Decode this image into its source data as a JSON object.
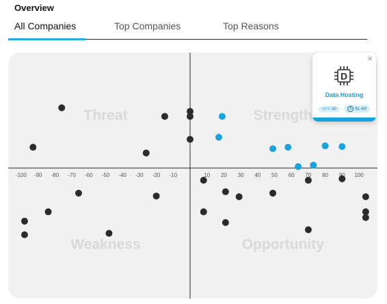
{
  "header": {
    "title": "Overview"
  },
  "tabs": [
    {
      "label": "All Companies",
      "active": true
    },
    {
      "label": "Top Companies",
      "active": false
    },
    {
      "label": "Top Reasons",
      "active": false
    }
  ],
  "colors": {
    "accent": "#1aa3dc",
    "point": "#2b2b2b",
    "quadrant_label": "#d9d9d9"
  },
  "chart_data": {
    "type": "scatter",
    "quadrants": [
      "Threat",
      "Strength",
      "Weakness",
      "Opportunity"
    ],
    "xlim": [
      -100,
      100
    ],
    "ylim": [
      -100,
      100
    ],
    "xticks": [
      -100,
      -90,
      -80,
      -70,
      -60,
      -50,
      -40,
      -30,
      -20,
      -10,
      10,
      20,
      30,
      40,
      50,
      60,
      70,
      80,
      90,
      100
    ],
    "points": [
      {
        "x": -76,
        "y": 84,
        "h": false
      },
      {
        "x": -15,
        "y": 72,
        "h": false
      },
      {
        "x": 0,
        "y": 79,
        "h": false
      },
      {
        "x": 0,
        "y": 72,
        "h": false
      },
      {
        "x": 0,
        "y": 40,
        "h": false
      },
      {
        "x": -93,
        "y": 29,
        "h": false
      },
      {
        "x": -26,
        "y": 21,
        "h": false
      },
      {
        "x": 19,
        "y": 72,
        "h": true
      },
      {
        "x": 17,
        "y": 43,
        "h": true
      },
      {
        "x": 49,
        "y": 27,
        "h": true
      },
      {
        "x": 58,
        "y": 29,
        "h": true
      },
      {
        "x": 80,
        "y": 31,
        "h": true
      },
      {
        "x": 90,
        "y": 30,
        "h": true
      },
      {
        "x": 64,
        "y": 2,
        "h": true
      },
      {
        "x": 73,
        "y": 4,
        "h": true
      },
      {
        "x": 8,
        "y": -17,
        "h": false
      },
      {
        "x": 70,
        "y": -17,
        "h": false
      },
      {
        "x": 90,
        "y": -15,
        "h": false
      },
      {
        "x": -66,
        "y": -35,
        "h": false
      },
      {
        "x": -20,
        "y": -39,
        "h": false
      },
      {
        "x": 21,
        "y": -33,
        "h": false
      },
      {
        "x": 29,
        "y": -40,
        "h": false
      },
      {
        "x": 49,
        "y": -35,
        "h": false
      },
      {
        "x": 104,
        "y": -40,
        "h": false
      },
      {
        "x": -84,
        "y": -61,
        "h": false
      },
      {
        "x": 8,
        "y": -61,
        "h": false
      },
      {
        "x": 104,
        "y": -61,
        "h": false
      },
      {
        "x": 104,
        "y": -69,
        "h": false
      },
      {
        "x": -98,
        "y": -74,
        "h": false
      },
      {
        "x": 21,
        "y": -76,
        "h": false
      },
      {
        "x": -98,
        "y": -93,
        "h": false
      },
      {
        "x": -48,
        "y": -91,
        "h": false
      },
      {
        "x": 70,
        "y": -86,
        "h": false
      }
    ]
  },
  "tooltip": {
    "icon": "chip-icon",
    "icon_letter": "D",
    "title": "Data Hosting",
    "nps_label": "NPS",
    "nps_value": "30",
    "dollar_symbol": "$",
    "amount": "$1.4M",
    "close_symbol": "×"
  }
}
